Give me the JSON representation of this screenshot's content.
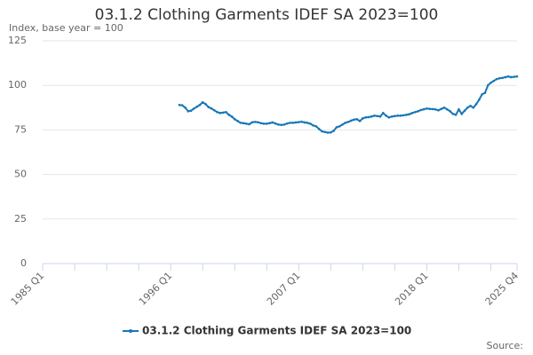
{
  "chart_data": {
    "type": "line",
    "title": "03.1.2 Clothing Garments IDEF SA 2023=100",
    "subtitle": "Index, base year = 100",
    "source": "Source:",
    "categories": [
      "1985 Q1",
      null,
      null,
      null,
      null,
      null,
      null,
      null,
      null,
      null,
      null,
      null,
      null,
      null,
      null,
      null,
      null,
      null,
      null,
      null,
      null,
      null,
      null,
      null,
      null,
      null,
      null,
      null,
      null,
      null,
      null,
      null,
      null,
      null,
      null,
      null,
      null,
      null,
      null,
      null,
      null,
      null,
      null,
      null,
      "1996 Q1",
      null,
      null,
      null,
      null,
      null,
      null,
      null,
      null,
      null,
      null,
      null,
      null,
      null,
      null,
      null,
      null,
      null,
      null,
      null,
      null,
      null,
      null,
      null,
      null,
      null,
      null,
      null,
      null,
      null,
      null,
      null,
      null,
      null,
      null,
      null,
      null,
      null,
      null,
      null,
      null,
      null,
      null,
      null,
      "2007 Q1",
      null,
      null,
      null,
      null,
      null,
      null,
      null,
      null,
      null,
      null,
      null,
      null,
      null,
      null,
      null,
      null,
      null,
      null,
      null,
      null,
      null,
      null,
      null,
      null,
      null,
      null,
      null,
      null,
      null,
      null,
      null,
      null,
      null,
      null,
      null,
      null,
      null,
      null,
      null,
      null,
      null,
      null,
      null,
      "2018 Q1",
      null,
      null,
      null,
      null,
      null,
      null,
      null,
      null,
      null,
      null,
      null,
      null,
      null,
      null,
      null,
      null,
      null,
      null,
      null,
      null,
      null,
      null,
      null,
      null,
      null,
      null,
      null,
      null,
      null,
      null,
      "2025 Q4"
    ],
    "series": [
      {
        "name": "03.1.2 Clothing Garments IDEF SA 2023=100",
        "color": "#1777b7",
        "values": [
          null,
          null,
          null,
          null,
          null,
          null,
          null,
          null,
          null,
          null,
          null,
          null,
          null,
          null,
          null,
          null,
          null,
          null,
          null,
          null,
          null,
          null,
          null,
          null,
          null,
          null,
          null,
          null,
          null,
          null,
          null,
          null,
          null,
          null,
          null,
          null,
          null,
          null,
          null,
          null,
          null,
          null,
          null,
          null,
          null,
          null,
          null,
          89,
          88.8,
          87.5,
          85.5,
          85.8,
          87,
          88,
          89,
          90.5,
          89.5,
          87.8,
          87,
          86,
          85,
          84.5,
          84.7,
          85,
          83.5,
          82.5,
          81,
          80,
          79,
          78.8,
          78.5,
          78.2,
          79.3,
          79.5,
          79.3,
          78.8,
          78.5,
          78.5,
          78.8,
          79.2,
          78.6,
          78,
          77.8,
          78,
          78.6,
          79,
          79,
          79.2,
          79.4,
          79.6,
          79.2,
          79,
          78.5,
          77.5,
          77,
          75.5,
          74.2,
          73.8,
          73.5,
          73.6,
          74.5,
          76.5,
          77,
          78,
          79,
          79.5,
          80.2,
          80.8,
          81,
          80,
          81.5,
          82,
          82.2,
          82.5,
          83,
          82.8,
          82.5,
          84.5,
          83,
          82,
          82.5,
          82.8,
          83,
          83,
          83.2,
          83.5,
          83.8,
          84.5,
          85,
          85.5,
          86.2,
          86.6,
          87,
          86.8,
          86.7,
          86.5,
          86,
          86.8,
          87.5,
          86.5,
          85.5,
          84,
          83.5,
          86.5,
          84,
          85.8,
          87.5,
          88.5,
          87.5,
          89.5,
          92,
          95,
          95.8,
          100,
          101.5,
          102.5,
          103.5,
          104,
          104.2,
          104.6,
          105,
          104.6,
          104.8,
          105
        ]
      }
    ],
    "ylim": [
      0,
      125
    ],
    "yticks": [
      0,
      25,
      50,
      75,
      100,
      125
    ],
    "grid": true
  }
}
